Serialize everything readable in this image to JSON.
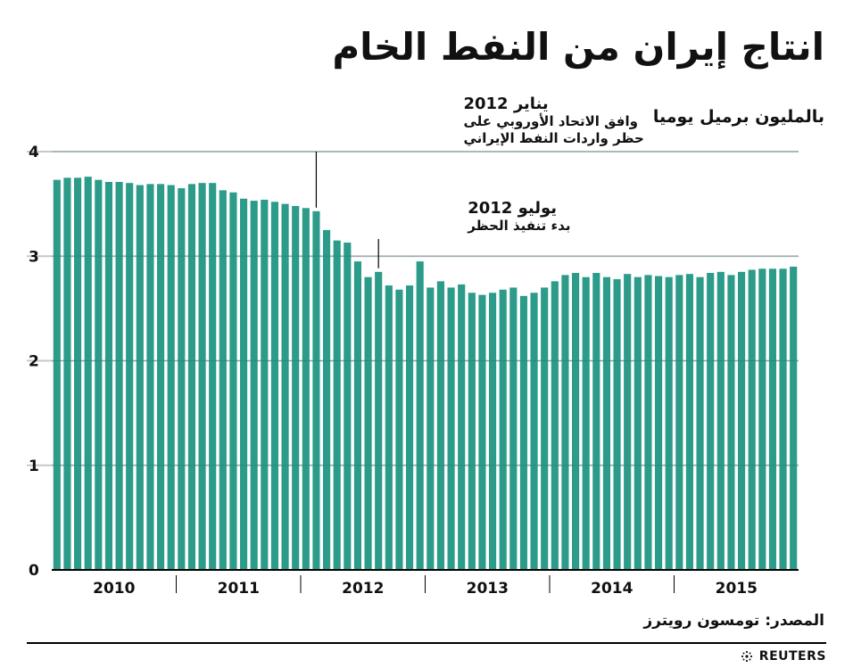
{
  "header": {
    "title": "انتاج إيران من النفط الخام",
    "unit": "بالمليون برميل يوميا"
  },
  "footer": {
    "source": "المصدر: تومسون رويترز",
    "brand": "REUTERS"
  },
  "colors": {
    "bar": "#2c9b89",
    "grid": "#c8c8c8",
    "text": "#111111"
  },
  "chart_data": {
    "type": "bar",
    "title": "انتاج إيران من النفط الخام",
    "ylabel": "بالمليون برميل يوميا",
    "ylim": [
      0,
      4
    ],
    "yticks": [
      0,
      1,
      2,
      3,
      4
    ],
    "grid": true,
    "x_group_labels": [
      "2010",
      "2011",
      "2012",
      "2013",
      "2014",
      "2015"
    ],
    "months_per_group": 12,
    "values": [
      3.73,
      3.75,
      3.75,
      3.76,
      3.73,
      3.71,
      3.71,
      3.7,
      3.68,
      3.69,
      3.69,
      3.68,
      3.65,
      3.69,
      3.7,
      3.7,
      3.63,
      3.61,
      3.55,
      3.53,
      3.54,
      3.52,
      3.5,
      3.48,
      3.46,
      3.43,
      3.25,
      3.15,
      3.13,
      2.95,
      2.8,
      2.85,
      2.72,
      2.68,
      2.72,
      2.95,
      2.7,
      2.76,
      2.7,
      2.73,
      2.65,
      2.63,
      2.65,
      2.68,
      2.7,
      2.62,
      2.65,
      2.7,
      2.76,
      2.82,
      2.84,
      2.8,
      2.84,
      2.8,
      2.78,
      2.83,
      2.8,
      2.82,
      2.81,
      2.8,
      2.82,
      2.83,
      2.8,
      2.84,
      2.85,
      2.82,
      2.85,
      2.87,
      2.88,
      2.88,
      2.88,
      2.9
    ],
    "annotations": [
      {
        "index": 25,
        "lines": [
          "يناير 2012",
          "وافق الاتحاد الأوروبي على",
          "حظر واردات النفط الإيراني"
        ]
      },
      {
        "index": 31,
        "lines": [
          "يوليو 2012",
          "بدء تنفيذ الحظر"
        ]
      }
    ]
  }
}
